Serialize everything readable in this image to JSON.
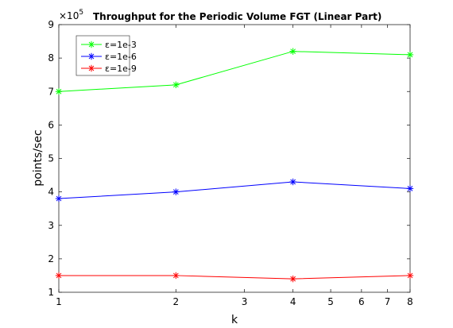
{
  "chart_data": {
    "type": "line",
    "title": "Throughput for the Periodic Volume FGT (Linear Part)",
    "xlabel": "k",
    "ylabel": "points/sec",
    "xscale": "log",
    "xlim": [
      1,
      8
    ],
    "ylim": [
      1,
      9
    ],
    "y_multiplier_label": "×10",
    "y_multiplier_exponent": "5",
    "x_ticks": [
      "1",
      "2",
      "3",
      "4",
      "5",
      "6",
      "7",
      "8"
    ],
    "y_ticks": [
      "1",
      "2",
      "3",
      "4",
      "5",
      "6",
      "7",
      "8",
      "9"
    ],
    "x": [
      1,
      2,
      4,
      8
    ],
    "series": [
      {
        "name": "ε=1e-3",
        "color": "#00ff00",
        "marker": "asterisk",
        "values": [
          7.0,
          7.2,
          8.2,
          8.1
        ]
      },
      {
        "name": "ε=1e-6",
        "color": "#0000ff",
        "marker": "asterisk",
        "values": [
          3.8,
          4.0,
          4.3,
          4.1
        ]
      },
      {
        "name": "ε=1e-9",
        "color": "#ff0000",
        "marker": "asterisk",
        "values": [
          1.5,
          1.5,
          1.4,
          1.5
        ]
      }
    ],
    "legend_position": "top-left",
    "grid": false
  }
}
